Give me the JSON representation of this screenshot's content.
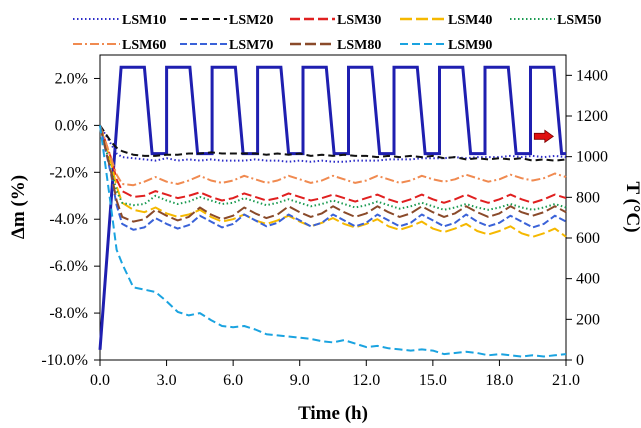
{
  "chart_data": {
    "type": "line",
    "xlabel": "Time (h)",
    "ylabel": "Δm (%)",
    "y2label": "T (°C)",
    "xlim": [
      0,
      21
    ],
    "ylim": [
      -10,
      3
    ],
    "y2lim": [
      0,
      1500
    ],
    "x_ticks": [
      "0.0",
      "3.0",
      "6.0",
      "9.0",
      "12.0",
      "15.0",
      "18.0",
      "21.0"
    ],
    "y_ticks": [
      "2.0%",
      "0.0%",
      "-2.0%",
      "-4.0%",
      "-6.0%",
      "-8.0%",
      "-10.0%"
    ],
    "y2_ticks": [
      "0",
      "200",
      "400",
      "600",
      "800",
      "1000",
      "1200",
      "1400"
    ],
    "grid": false,
    "legend_position": "top",
    "x": [
      0,
      0.5,
      0.75,
      1,
      1.5,
      2,
      2.5,
      3,
      3.5,
      4,
      4.5,
      5,
      5.5,
      6,
      6.5,
      7,
      7.5,
      8,
      8.5,
      9,
      9.5,
      10,
      10.5,
      11,
      11.5,
      12,
      12.5,
      13,
      13.5,
      14,
      14.5,
      15,
      15.5,
      16,
      16.5,
      17,
      17.5,
      18,
      18.5,
      19,
      19.5,
      20,
      20.5,
      21
    ],
    "series": [
      {
        "name": "LSM10",
        "color": "#2c2cc8",
        "dash": "1.5 2.5",
        "values": [
          0,
          -0.8,
          -1.2,
          -1.35,
          -1.4,
          -1.45,
          -1.5,
          -1.4,
          -1.5,
          -1.45,
          -1.5,
          -1.45,
          -1.5,
          -1.5,
          -1.5,
          -1.45,
          -1.5,
          -1.5,
          -1.55,
          -1.5,
          -1.55,
          -1.5,
          -1.55,
          -1.55,
          -1.5,
          -1.5,
          -1.5,
          -1.45,
          -1.45,
          -1.45,
          -1.4,
          -1.4,
          -1.4,
          -1.35,
          -1.4,
          -1.35,
          -1.35,
          -1.35,
          -1.3,
          -1.35,
          -1.3,
          -1.35,
          -1.3,
          -1.35
        ]
      },
      {
        "name": "LSM20",
        "color": "#111111",
        "dash": "7 4",
        "values": [
          0,
          -0.7,
          -0.95,
          -1.1,
          -1.25,
          -1.3,
          -1.3,
          -1.25,
          -1.25,
          -1.2,
          -1.2,
          -1.15,
          -1.2,
          -1.2,
          -1.2,
          -1.2,
          -1.25,
          -1.2,
          -1.25,
          -1.2,
          -1.3,
          -1.25,
          -1.3,
          -1.25,
          -1.3,
          -1.3,
          -1.35,
          -1.3,
          -1.35,
          -1.3,
          -1.35,
          -1.3,
          -1.4,
          -1.35,
          -1.45,
          -1.4,
          -1.45,
          -1.4,
          -1.45,
          -1.4,
          -1.5,
          -1.45,
          -1.5,
          -1.45
        ]
      },
      {
        "name": "LSM30",
        "color": "#e02020",
        "dash": "10 4",
        "values": [
          0,
          -1.4,
          -2.3,
          -2.8,
          -3.05,
          -3.0,
          -2.8,
          -2.95,
          -3.1,
          -3.0,
          -2.85,
          -3.05,
          -3.2,
          -3.1,
          -2.9,
          -3.05,
          -3.2,
          -3.1,
          -2.9,
          -3.05,
          -3.2,
          -3.1,
          -2.95,
          -3.1,
          -3.25,
          -3.1,
          -2.95,
          -3.15,
          -3.3,
          -3.15,
          -2.95,
          -3.15,
          -3.3,
          -3.15,
          -2.95,
          -3.15,
          -3.3,
          -3.15,
          -2.95,
          -3.15,
          -3.3,
          -3.15,
          -2.95,
          -3.1
        ]
      },
      {
        "name": "LSM40",
        "color": "#f5b800",
        "dash": "12 4",
        "values": [
          0,
          -1.6,
          -2.6,
          -3.3,
          -3.6,
          -3.7,
          -3.5,
          -3.75,
          -3.9,
          -3.8,
          -3.6,
          -3.9,
          -4.1,
          -4.0,
          -3.8,
          -4.05,
          -4.2,
          -4.05,
          -3.85,
          -4.1,
          -4.3,
          -4.15,
          -3.95,
          -4.2,
          -4.35,
          -4.2,
          -4.0,
          -4.3,
          -4.45,
          -4.3,
          -4.1,
          -4.4,
          -4.55,
          -4.4,
          -4.2,
          -4.5,
          -4.65,
          -4.5,
          -4.3,
          -4.6,
          -4.75,
          -4.6,
          -4.4,
          -4.75
        ]
      },
      {
        "name": "LSM50",
        "color": "#1a9a50",
        "dash": "1.5 2.5",
        "values": [
          0,
          -1.9,
          -2.8,
          -3.3,
          -3.4,
          -3.35,
          -3.0,
          -3.2,
          -3.35,
          -3.25,
          -3.05,
          -3.2,
          -3.35,
          -3.3,
          -3.1,
          -3.25,
          -3.4,
          -3.3,
          -3.15,
          -3.3,
          -3.45,
          -3.35,
          -3.2,
          -3.35,
          -3.5,
          -3.4,
          -3.25,
          -3.4,
          -3.55,
          -3.45,
          -3.3,
          -3.45,
          -3.6,
          -3.5,
          -3.35,
          -3.5,
          -3.6,
          -3.5,
          -3.35,
          -3.5,
          -3.6,
          -3.5,
          -3.35,
          -3.5
        ]
      },
      {
        "name": "LSM60",
        "color": "#f08a50",
        "dash": "9 3 2 3",
        "values": [
          0,
          -1.4,
          -2.1,
          -2.5,
          -2.55,
          -2.4,
          -2.2,
          -2.4,
          -2.5,
          -2.35,
          -2.15,
          -2.35,
          -2.45,
          -2.35,
          -2.15,
          -2.3,
          -2.45,
          -2.35,
          -2.15,
          -2.3,
          -2.45,
          -2.35,
          -2.15,
          -2.3,
          -2.45,
          -2.35,
          -2.15,
          -2.3,
          -2.45,
          -2.35,
          -2.15,
          -2.3,
          -2.4,
          -2.3,
          -2.1,
          -2.25,
          -2.4,
          -2.3,
          -2.1,
          -2.25,
          -2.35,
          -2.25,
          -2.05,
          -2.2
        ]
      },
      {
        "name": "LSM70",
        "color": "#3a62d8",
        "dash": "7 3",
        "values": [
          0,
          -2.1,
          -3.4,
          -4.2,
          -4.45,
          -4.35,
          -3.95,
          -4.2,
          -4.4,
          -4.25,
          -3.85,
          -4.1,
          -4.35,
          -4.2,
          -3.8,
          -4.05,
          -4.3,
          -4.15,
          -3.8,
          -4.05,
          -4.3,
          -4.15,
          -3.8,
          -4.05,
          -4.3,
          -4.15,
          -3.8,
          -4.05,
          -4.3,
          -4.15,
          -3.8,
          -4.05,
          -4.3,
          -4.15,
          -3.8,
          -4.1,
          -4.3,
          -4.15,
          -3.85,
          -4.1,
          -4.35,
          -4.2,
          -3.85,
          -4.1
        ]
      },
      {
        "name": "LSM80",
        "color": "#8a4a2a",
        "dash": "11 4",
        "values": [
          0,
          -2.0,
          -3.2,
          -3.9,
          -4.1,
          -4.0,
          -3.6,
          -3.85,
          -4.05,
          -3.9,
          -3.5,
          -3.8,
          -4.0,
          -3.85,
          -3.5,
          -3.75,
          -3.95,
          -3.8,
          -3.45,
          -3.7,
          -3.9,
          -3.75,
          -3.45,
          -3.7,
          -3.9,
          -3.75,
          -3.45,
          -3.7,
          -3.9,
          -3.75,
          -3.45,
          -3.7,
          -3.9,
          -3.75,
          -3.45,
          -3.7,
          -3.9,
          -3.75,
          -3.45,
          -3.7,
          -3.85,
          -3.7,
          -3.45,
          -3.7
        ]
      },
      {
        "name": "LSM90",
        "color": "#1aa3e0",
        "dash": "8 4",
        "values": [
          0,
          -3.5,
          -5.3,
          -5.9,
          -6.9,
          -7.0,
          -7.1,
          -7.5,
          -7.95,
          -8.1,
          -8.0,
          -8.3,
          -8.55,
          -8.6,
          -8.55,
          -8.7,
          -8.9,
          -8.95,
          -9.0,
          -9.05,
          -9.1,
          -9.2,
          -9.25,
          -9.15,
          -9.3,
          -9.45,
          -9.4,
          -9.5,
          -9.55,
          -9.6,
          -9.55,
          -9.6,
          -9.75,
          -9.7,
          -9.65,
          -9.7,
          -9.8,
          -9.75,
          -9.8,
          -9.85,
          -9.8,
          -9.85,
          -9.8,
          -9.75
        ]
      }
    ],
    "temperature_series": {
      "axis": "right",
      "color": "#1f1fb0",
      "x": [
        0,
        0.95,
        0.95,
        2.0,
        2.35,
        3.0,
        3.0,
        4.05,
        4.4,
        5.05,
        5.05,
        6.1,
        6.45,
        7.1,
        7.1,
        8.15,
        8.5,
        9.15,
        9.15,
        10.2,
        10.55,
        11.2,
        11.2,
        12.25,
        12.6,
        13.25,
        13.25,
        14.3,
        14.65,
        15.3,
        15.3,
        16.35,
        16.7,
        17.35,
        17.35,
        18.4,
        18.75,
        19.4,
        19.4,
        20.45,
        20.8,
        21.0
      ],
      "values": [
        50,
        1440,
        1440,
        1440,
        1015,
        1015,
        1440,
        1440,
        1015,
        1015,
        1440,
        1440,
        1015,
        1015,
        1440,
        1440,
        1015,
        1015,
        1440,
        1440,
        1015,
        1015,
        1440,
        1440,
        1015,
        1015,
        1440,
        1440,
        1015,
        1015,
        1440,
        1440,
        1015,
        1015,
        1440,
        1440,
        1015,
        1015,
        1440,
        1440,
        1015,
        1015
      ]
    },
    "arrow_annotation": {
      "direction": "right",
      "color": "#e01010",
      "x": 20.0,
      "y2": 1100
    }
  }
}
